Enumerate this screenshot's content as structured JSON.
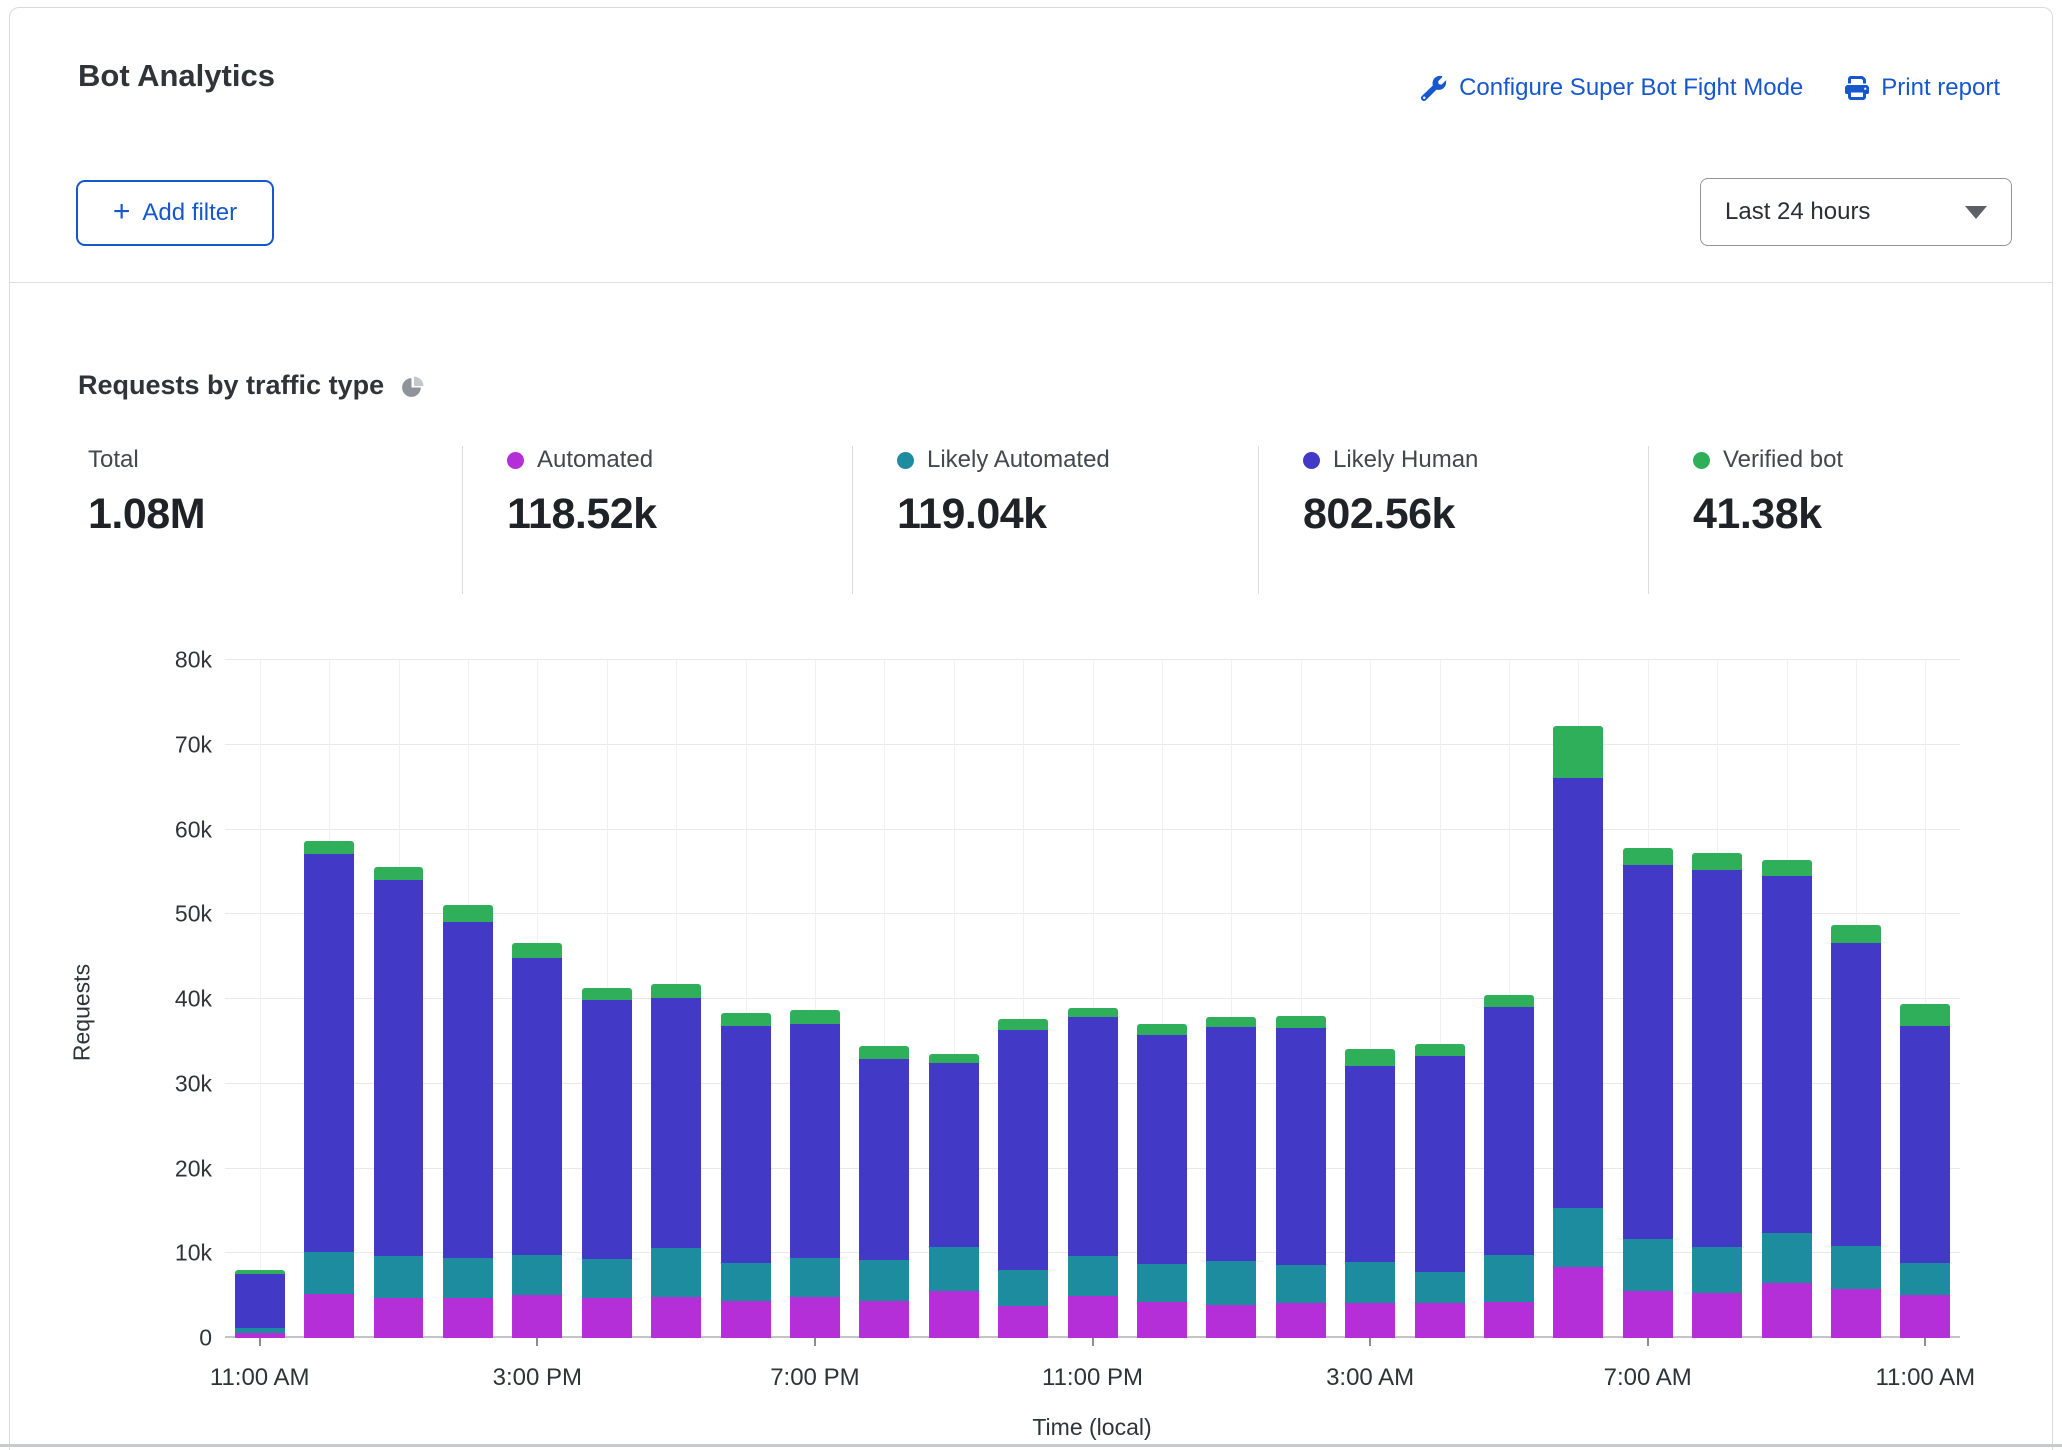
{
  "header": {
    "title": "Bot Analytics",
    "configure_link": "Configure Super Bot Fight Mode",
    "print_link": "Print report"
  },
  "filters": {
    "plus_sign": "+",
    "add_filter_label": "Add filter",
    "time_range_selected": "Last 24 hours"
  },
  "section": {
    "title": "Requests by traffic type"
  },
  "stats": [
    {
      "label": "Total",
      "value": "1.08M",
      "color": null
    },
    {
      "label": "Automated",
      "value": "118.52k",
      "color": "#b52fd8"
    },
    {
      "label": "Likely Automated",
      "value": "119.04k",
      "color": "#1e8c9f"
    },
    {
      "label": "Likely Human",
      "value": "802.56k",
      "color": "#4239c7"
    },
    {
      "label": "Verified bot",
      "value": "41.38k",
      "color": "#30af5b"
    }
  ],
  "chart_data": {
    "type": "bar",
    "stacked": true,
    "title": "Requests by traffic type",
    "xlabel": "Time (local)",
    "ylabel": "Requests",
    "ylim": [
      0,
      80000
    ],
    "grid": true,
    "legend_position": "top-stat-cards",
    "ytick_labels": [
      "0",
      "10k",
      "20k",
      "30k",
      "40k",
      "50k",
      "60k",
      "70k",
      "80k"
    ],
    "categories": [
      "11:00 AM",
      "12:00 PM",
      "1:00 PM",
      "2:00 PM",
      "3:00 PM",
      "4:00 PM",
      "5:00 PM",
      "6:00 PM",
      "7:00 PM",
      "8:00 PM",
      "9:00 PM",
      "10:00 PM",
      "11:00 PM",
      "12:00 AM",
      "1:00 AM",
      "2:00 AM",
      "3:00 AM",
      "4:00 AM",
      "5:00 AM",
      "6:00 AM",
      "7:00 AM",
      "8:00 AM",
      "9:00 AM",
      "10:00 AM",
      "11:00 AM"
    ],
    "xtick_positions": [
      0,
      4,
      8,
      12,
      16,
      20,
      24
    ],
    "xtick_labels": [
      "11:00 AM",
      "3:00 PM",
      "7:00 PM",
      "11:00 PM",
      "3:00 AM",
      "7:00 AM",
      "11:00 AM"
    ],
    "series": [
      {
        "name": "Automated",
        "color": "#b52fd8",
        "values": [
          600,
          5200,
          4700,
          4700,
          5100,
          4700,
          4900,
          4400,
          4800,
          4400,
          5600,
          3800,
          5000,
          4300,
          3900,
          4100,
          4100,
          4100,
          4300,
          8400,
          5600,
          5300,
          6500,
          5800,
          5100
        ]
      },
      {
        "name": "Likely Automated",
        "color": "#1e8c9f",
        "values": [
          600,
          5000,
          5000,
          4700,
          4700,
          4600,
          5700,
          4400,
          4700,
          4800,
          5100,
          4200,
          4700,
          4500,
          5200,
          4500,
          4900,
          3700,
          5500,
          7000,
          6100,
          5400,
          5900,
          5000,
          3800
        ]
      },
      {
        "name": "Likely Human",
        "color": "#4239c7",
        "values": [
          6400,
          46900,
          44300,
          39700,
          35100,
          30600,
          29500,
          28000,
          27600,
          23700,
          21700,
          28400,
          28200,
          27000,
          27600,
          28000,
          23100,
          25500,
          29300,
          50700,
          44100,
          44500,
          42100,
          35800,
          27900
        ]
      },
      {
        "name": "Verified bot",
        "color": "#30af5b",
        "values": [
          400,
          1500,
          1600,
          2000,
          1700,
          1400,
          1700,
          1600,
          1600,
          1500,
          1100,
          1200,
          1000,
          1300,
          1200,
          1400,
          2000,
          1400,
          1400,
          6100,
          2000,
          2000,
          1900,
          2100,
          2600
        ]
      }
    ]
  }
}
